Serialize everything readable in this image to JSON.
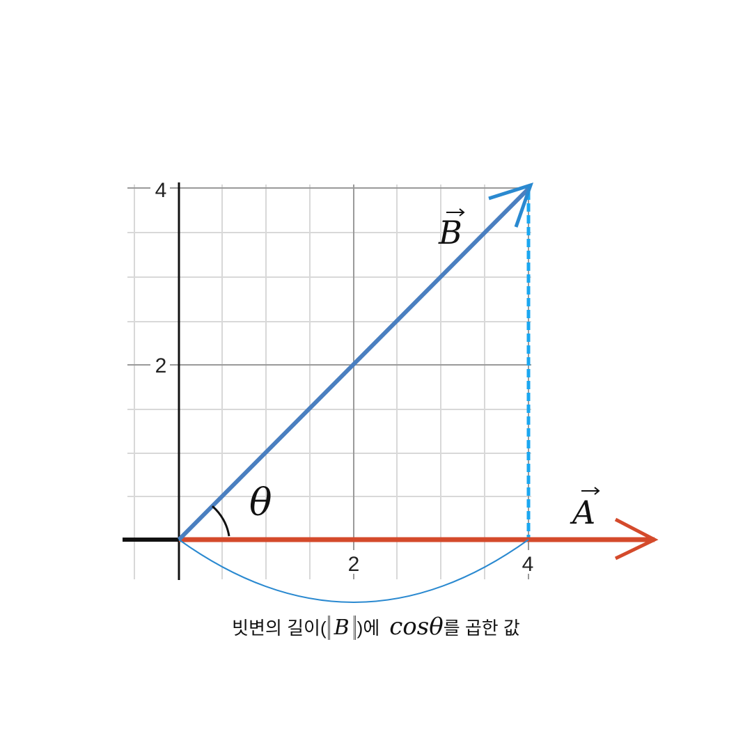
{
  "diagram": {
    "tick_labels": {
      "x": [
        "2",
        "4"
      ],
      "y": [
        "2",
        "4"
      ]
    },
    "vector_a_label": "A",
    "vector_b_label": "B",
    "angle_label": "θ",
    "caption": {
      "prefix": "빗변의 길이(",
      "norm_symbol": "B",
      "middle": ")에",
      "cos_term": "cosθ",
      "suffix": "를 곱한 값"
    },
    "colors": {
      "vector_a": "#d44a2b",
      "vector_b": "#4a7fc0",
      "arrow_b_head": "#2a89d0",
      "projection_dashed": "#1aa7f0",
      "arc": "#2a89d0",
      "axis": "#111111",
      "grid_major": "#9a9a9a",
      "grid_minor": "#d8d8d8"
    },
    "icons": {
      "vector_arrow": "right-arrow-over-symbol"
    }
  }
}
